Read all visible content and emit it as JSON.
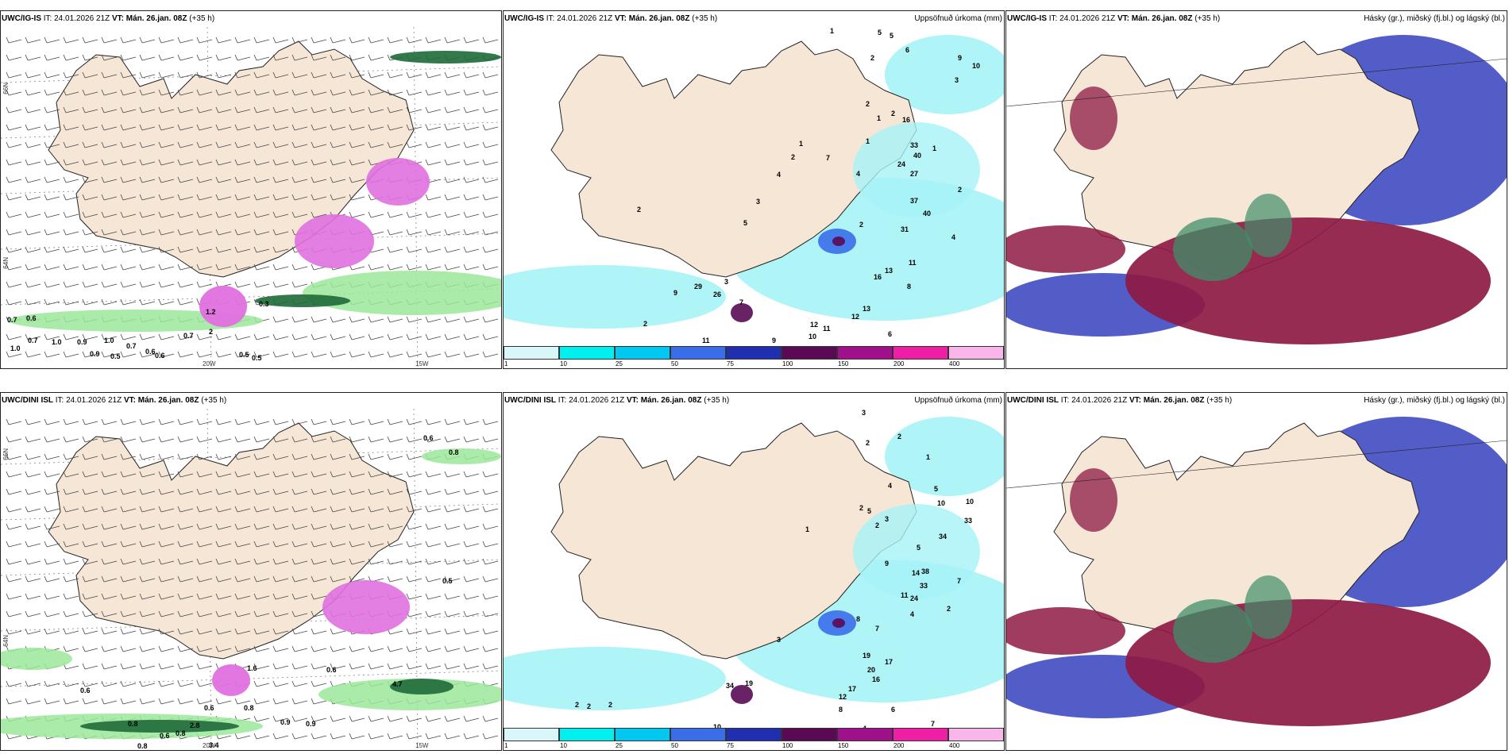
{
  "panels": [
    {
      "model": "UWC/IG-IS",
      "it": "IT: 24.01.2026 21Z",
      "vt_label": "VT:",
      "vt": "Mán. 26.jan. 08Z",
      "lead": "(+35 h)",
      "right": ""
    },
    {
      "model": "UWC/IG-IS",
      "it": "IT: 24.01.2026 21Z",
      "vt_label": "VT:",
      "vt": "Mán. 26.jan. 08Z",
      "lead": "(+35 h)",
      "right": "Uppsöfnuð úrkoma (mm)"
    },
    {
      "model": "UWC/IG-IS",
      "it": "IT: 24.01.2026 21Z",
      "vt_label": "VT:",
      "vt": "Mán. 26.jan. 08Z",
      "lead": "(+35 h)",
      "right": "Hásky (gr.), miðský (fj.bl.) og lágský (bl.)"
    },
    {
      "model": "UWC/DINI ISL",
      "it": "IT: 24.01.2026 21Z",
      "vt_label": "VT:",
      "vt": "Mán. 26.jan. 08Z",
      "lead": "(+35 h)",
      "right": ""
    },
    {
      "model": "UWC/DINI ISL",
      "it": "IT: 24.01.2026 21Z",
      "vt_label": "VT:",
      "vt": "Mán. 26.jan. 08Z",
      "lead": "(+35 h)",
      "right": "Uppsöfnuð úrkoma (mm)"
    },
    {
      "model": "UWC/DINI ISL",
      "it": "IT: 24.01.2026 21Z",
      "vt_label": "VT:",
      "vt": "Mán. 26.jan. 08Z",
      "lead": "(+35 h)",
      "right": "Hásky (gr.), miðský (fj.bl.) og lágský (bl.)"
    }
  ],
  "axes": {
    "lat66": "66N",
    "lat64": "64N",
    "lon20": "20W",
    "lon15": "15W"
  },
  "legend": {
    "ticks": [
      "1",
      "10",
      "25",
      "50",
      "75",
      "100",
      "150",
      "200",
      "400"
    ],
    "colors": [
      "#d9f6fb",
      "#00f0f0",
      "#00c8f0",
      "#3a6ee8",
      "#1f2fb0",
      "#5a0a55",
      "#a0108a",
      "#ee1ea5",
      "#f8b6ea"
    ]
  },
  "colors": {
    "land": "#f5e6d6",
    "rain": "#a6f3f6",
    "snow": "#e070e0",
    "green": "#9be89b",
    "high": "#8e1a44",
    "mid": "#4a54c4",
    "low": "#3f8f6a"
  },
  "labels": {
    "p1": [
      "0.7",
      "0.6",
      "1.0",
      "0.7",
      "1.0",
      "0.9",
      "1.0",
      "0.7",
      "0.9",
      "0.6",
      "0.5",
      "0.6",
      "0.7",
      "0.5",
      "0.5",
      "1.2",
      "0.3",
      "2"
    ],
    "p2": [
      "1",
      "5",
      "5",
      "6",
      "9",
      "10",
      "3",
      "2",
      "2",
      "2",
      "16",
      "33",
      "40",
      "24",
      "27",
      "2",
      "37",
      "40",
      "31",
      "11",
      "13",
      "16",
      "13",
      "12",
      "11",
      "12",
      "10",
      "9",
      "14",
      "11",
      "9",
      "29",
      "26",
      "3",
      "7",
      "2",
      "3",
      "2",
      "5",
      "4",
      "2",
      "1",
      "1",
      "1",
      "1",
      "2",
      "6",
      "8",
      "4",
      "7",
      "4"
    ],
    "p4": [
      "0.6",
      "0.8",
      "0.5",
      "0.6",
      "0.8",
      "0.6",
      "0.8",
      "0.8",
      "0.6",
      "0.8",
      "0.9",
      "4.7",
      "3.4",
      "2.8",
      "0.9",
      "1.6",
      "0.6"
    ],
    "p5": [
      "3",
      "2",
      "2",
      "1",
      "5",
      "4",
      "5",
      "3",
      "10",
      "10",
      "33",
      "34",
      "38",
      "33",
      "24",
      "14",
      "9",
      "11",
      "7",
      "17",
      "19",
      "20",
      "16",
      "12",
      "17",
      "6",
      "8",
      "4",
      "4",
      "7",
      "7",
      "2",
      "2",
      "2",
      "4",
      "19",
      "34",
      "10",
      "3",
      "1",
      "2",
      "2",
      "7",
      "5",
      "2",
      "8",
      "4"
    ]
  }
}
